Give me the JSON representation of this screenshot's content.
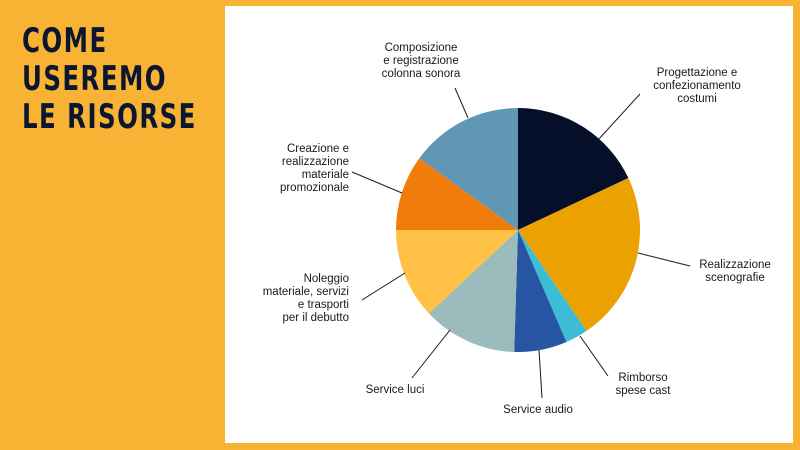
{
  "title_lines": [
    "COME",
    "USEREMO",
    "LE RISORSE"
  ],
  "chart_data": {
    "type": "pie",
    "title": "",
    "start_angle_deg": 0,
    "direction": "clockwise",
    "slices": [
      {
        "label": "Progettazione e confezionamento costumi",
        "label_lines": [
          "Progettazione e",
          "confezionamento",
          "costumi"
        ],
        "value": 18,
        "color": "#050F2A"
      },
      {
        "label": "Realizzazione scenografie",
        "label_lines": [
          "Realizzazione",
          "scenografie"
        ],
        "value": 22.5,
        "color": "#EBA200"
      },
      {
        "label": "Rimborso spese cast",
        "label_lines": [
          "Rimborso",
          "spese cast"
        ],
        "value": 3,
        "color": "#3DBCD4"
      },
      {
        "label": "Service audio",
        "label_lines": [
          "Service audio"
        ],
        "value": 7,
        "color": "#2754A3"
      },
      {
        "label": "Service luci",
        "label_lines": [
          "Service luci"
        ],
        "value": 12.5,
        "color": "#9BBBBD"
      },
      {
        "label": "Noleggio materiale, servizi e trasporti per il debutto",
        "label_lines": [
          "Noleggio",
          "materiale, servizi",
          "e trasporti",
          "per il debutto"
        ],
        "value": 12,
        "color": "#FFC247"
      },
      {
        "label": "Creazione e realizzazione materiale promozionale",
        "label_lines": [
          "Creazione e",
          "realizzazione",
          "materiale",
          "promozionale"
        ],
        "value": 10,
        "color": "#F07C0C"
      },
      {
        "label": "Composizione e registrazione colonna sonora",
        "label_lines": [
          "Composizione",
          "e registrazione",
          "colonna sonora"
        ],
        "value": 15,
        "color": "#5F97B5"
      }
    ]
  }
}
